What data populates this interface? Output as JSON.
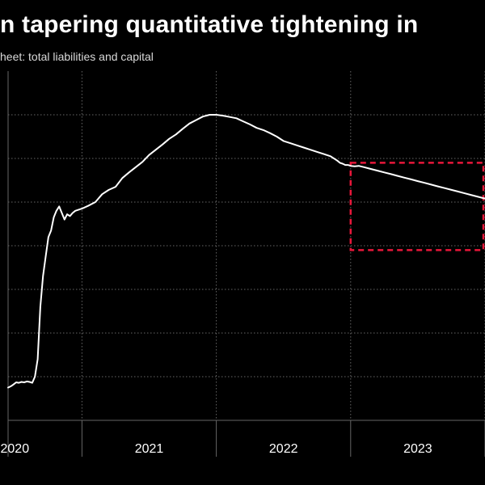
{
  "header": {
    "title": "n tapering quantitative tightening in",
    "subtitle": "heet: total liabilities and capital"
  },
  "colors": {
    "background": "#000000",
    "line": "#ffffff",
    "grid": "#666666",
    "highlight": "#e8173a"
  },
  "chart_data": {
    "type": "line",
    "title": "n tapering quantitative tightening in",
    "subtitle": "heet: total liabilities and capital",
    "xlabel": "",
    "ylabel": "",
    "x_ticks": [
      "2020",
      "2021",
      "2022",
      "2023"
    ],
    "xlim": [
      2019.95,
      2023.5
    ],
    "ylim": [
      0,
      8
    ],
    "grid": true,
    "y_gridlines": [
      1,
      2,
      3,
      4,
      5,
      6,
      7
    ],
    "x_gridlines": [
      2020.5,
      2021.5,
      2022.5,
      2023.5
    ],
    "series": [
      {
        "name": "",
        "x": [
          2019.95,
          2019.97,
          2019.99,
          2020.01,
          2020.03,
          2020.05,
          2020.07,
          2020.09,
          2020.11,
          2020.13,
          2020.15,
          2020.17,
          2020.19,
          2020.21,
          2020.23,
          2020.25,
          2020.27,
          2020.29,
          2020.31,
          2020.33,
          2020.35,
          2020.37,
          2020.39,
          2020.41,
          2020.43,
          2020.45,
          2020.5,
          2020.55,
          2020.6,
          2020.65,
          2020.7,
          2020.75,
          2020.8,
          2020.85,
          2020.9,
          2020.95,
          2021.0,
          2021.05,
          2021.1,
          2021.15,
          2021.2,
          2021.25,
          2021.3,
          2021.35,
          2021.4,
          2021.45,
          2021.5,
          2021.55,
          2021.6,
          2021.65,
          2021.7,
          2021.75,
          2021.8,
          2021.85,
          2021.9,
          2021.95,
          2022.0,
          2022.05,
          2022.1,
          2022.15,
          2022.2,
          2022.25,
          2022.3,
          2022.35,
          2022.4,
          2022.42,
          2022.44,
          2022.46,
          2022.48,
          2022.5,
          2022.53,
          2022.56,
          2022.6,
          2022.65,
          2022.7,
          2022.75,
          2022.8,
          2022.85,
          2022.9,
          2022.95,
          2023.0,
          2023.05,
          2023.1,
          2023.15,
          2023.2,
          2023.25,
          2023.3,
          2023.35,
          2023.4,
          2023.45,
          2023.5
        ],
        "values": [
          0.75,
          0.78,
          0.82,
          0.87,
          0.86,
          0.88,
          0.87,
          0.89,
          0.88,
          0.86,
          1.0,
          1.4,
          2.6,
          3.3,
          3.75,
          4.2,
          4.35,
          4.65,
          4.8,
          4.9,
          4.75,
          4.6,
          4.72,
          4.68,
          4.75,
          4.8,
          4.85,
          4.92,
          5.0,
          5.18,
          5.28,
          5.35,
          5.55,
          5.68,
          5.8,
          5.92,
          6.08,
          6.2,
          6.32,
          6.45,
          6.55,
          6.68,
          6.8,
          6.88,
          6.96,
          7.0,
          7.0,
          6.98,
          6.95,
          6.92,
          6.85,
          6.78,
          6.7,
          6.65,
          6.58,
          6.5,
          6.4,
          6.35,
          6.3,
          6.25,
          6.2,
          6.15,
          6.1,
          6.05,
          5.95,
          5.9,
          5.88,
          5.85,
          5.85,
          5.83,
          5.82,
          5.83,
          5.8,
          5.76,
          5.72,
          5.68,
          5.64,
          5.6,
          5.56,
          5.52,
          5.48,
          5.44,
          5.4,
          5.36,
          5.32,
          5.28,
          5.24,
          5.2,
          5.16,
          5.12,
          5.08
        ]
      }
    ],
    "annotations": [
      {
        "type": "dashed-box",
        "x0": 2022.5,
        "x1": 2023.5,
        "y0": 3.9,
        "y1": 5.9
      }
    ]
  }
}
